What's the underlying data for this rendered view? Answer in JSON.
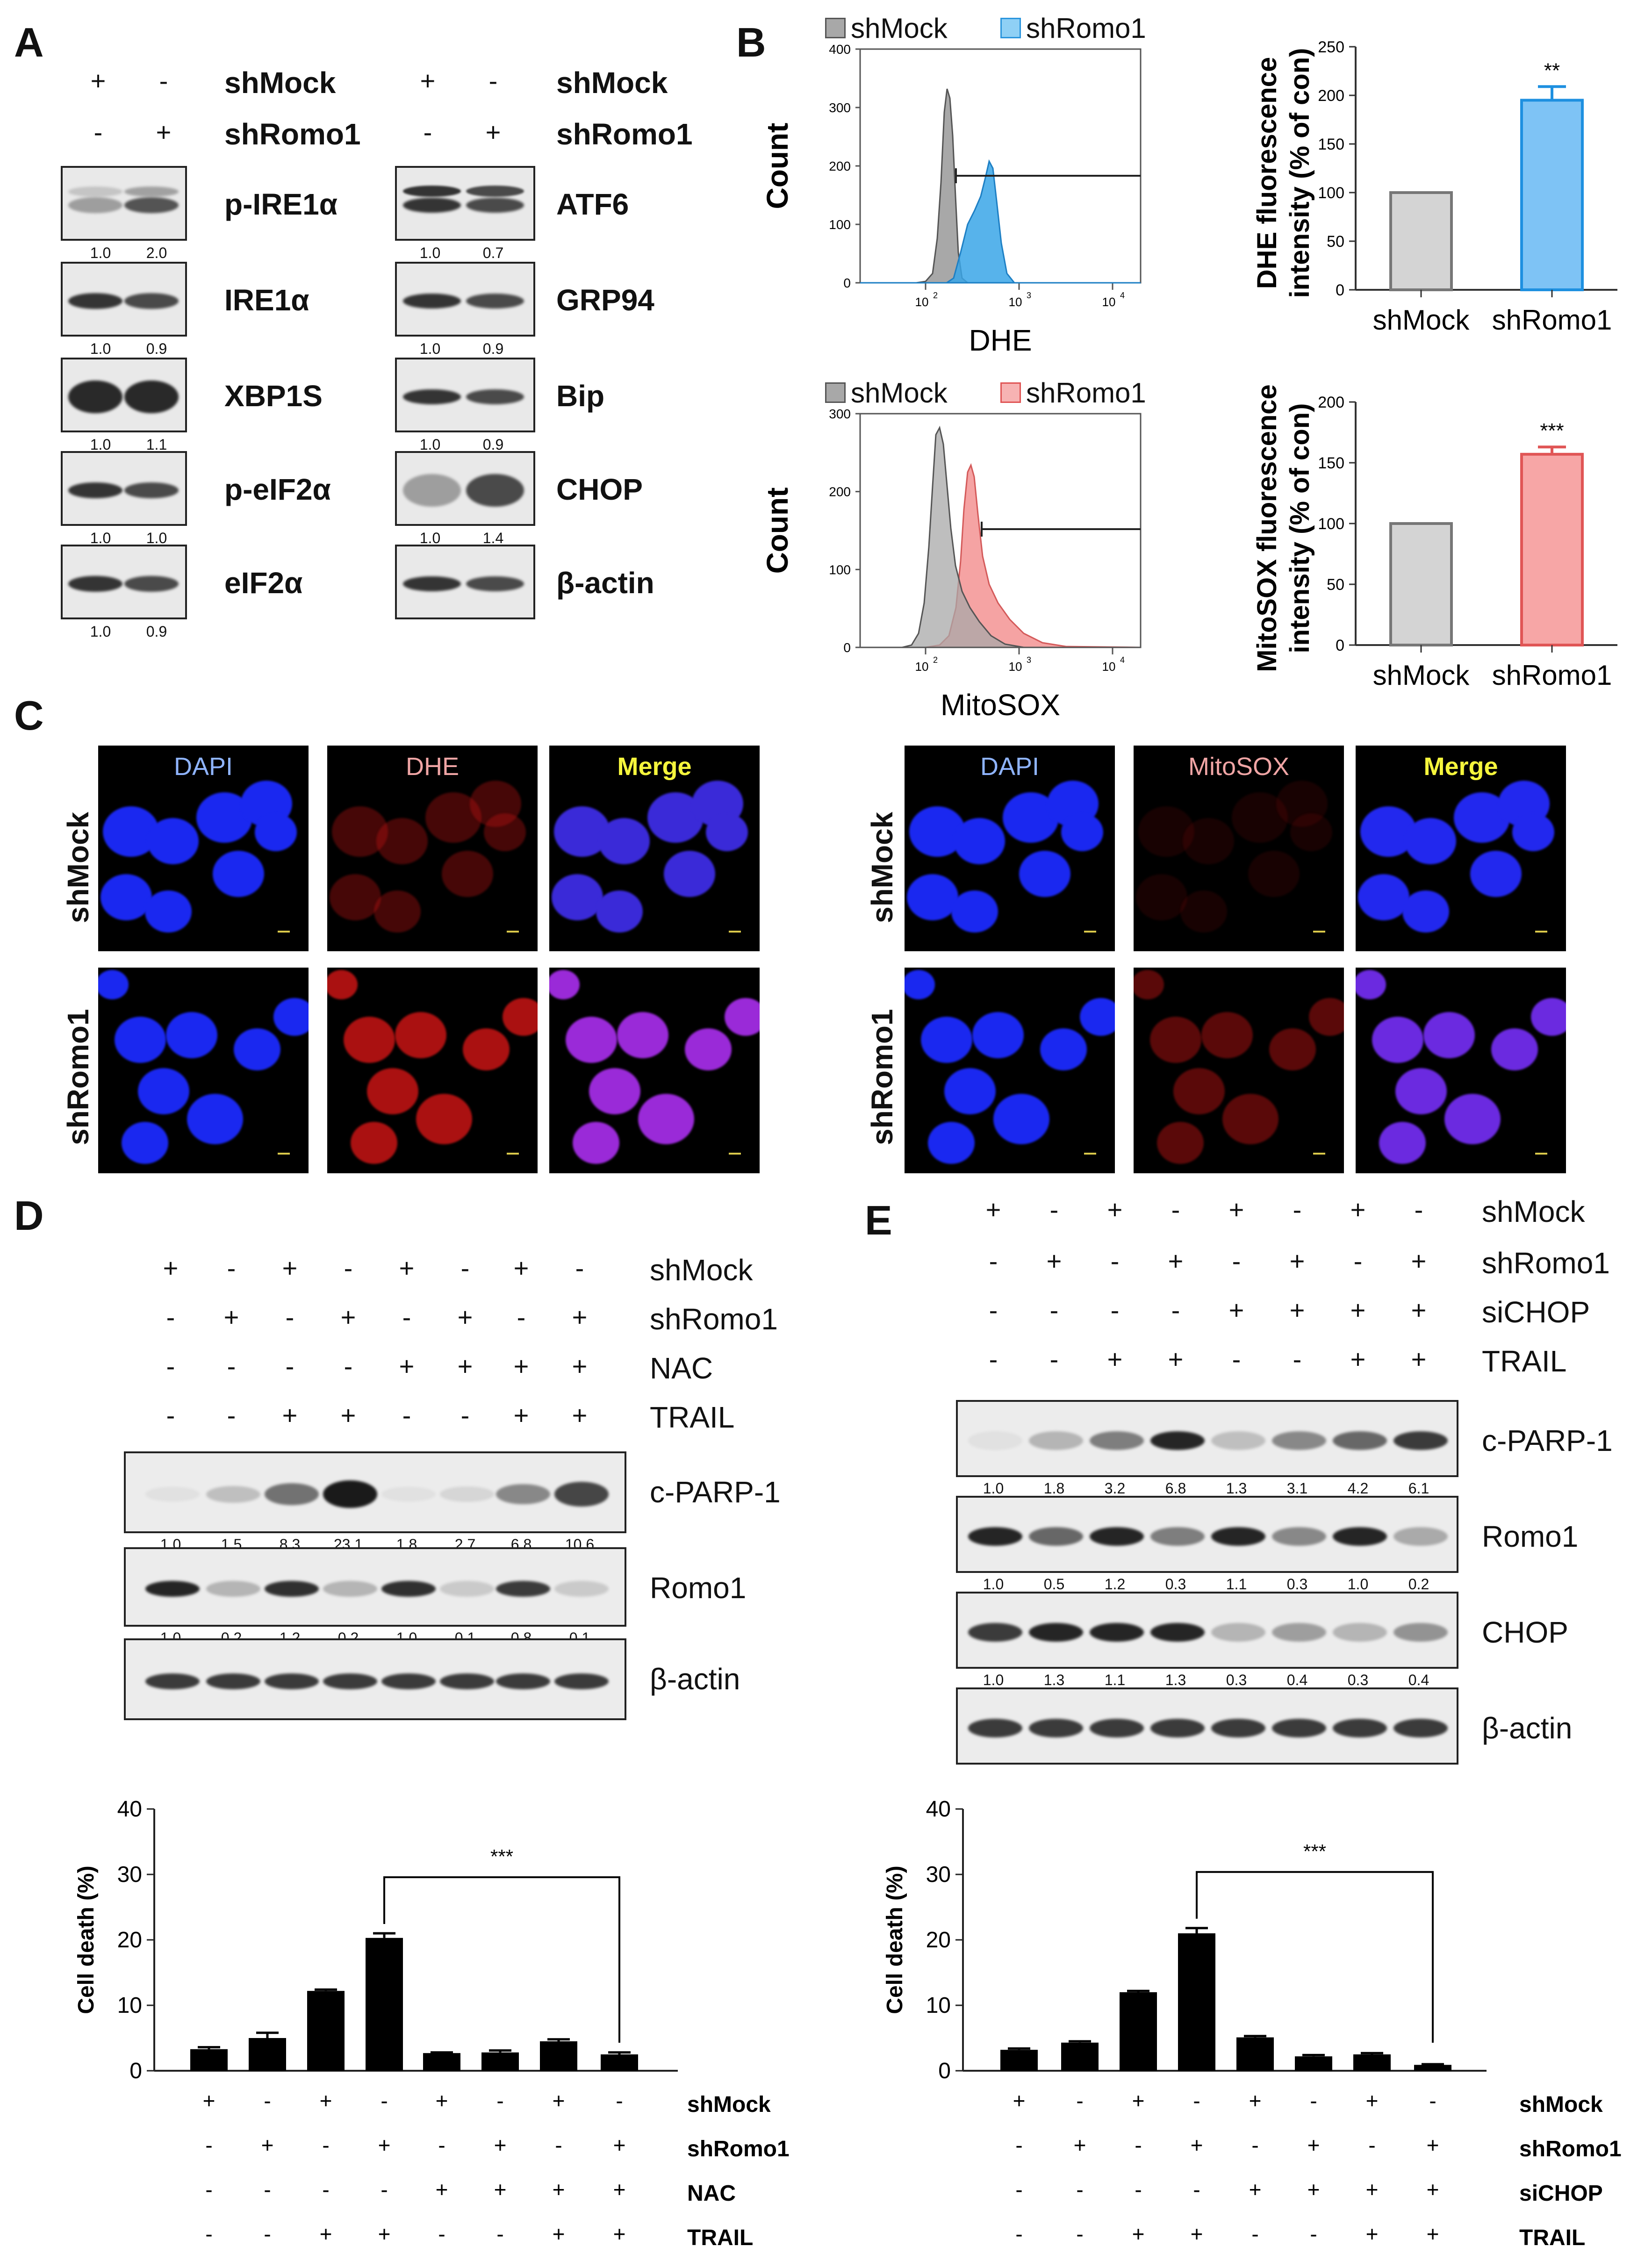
{
  "panels": {
    "A": "A",
    "B": "B",
    "C": "C",
    "D": "D",
    "E": "E"
  },
  "conditions": {
    "mock": "shMock",
    "romo": "shRomo1",
    "nac": "NAC",
    "trail": "TRAIL",
    "sichop": "siCHOP"
  },
  "sign": {
    "plus": "+",
    "minus": "-"
  },
  "panelA": {
    "left": [
      {
        "label": "p-IRE1α",
        "q": [
          "1.0",
          "2.0"
        ]
      },
      {
        "label": "IRE1α",
        "q": [
          "1.0",
          "0.9"
        ]
      },
      {
        "label": "XBP1S",
        "q": [
          "1.0",
          "1.1"
        ]
      },
      {
        "label": "p-eIF2α",
        "q": [
          "1.0",
          "1.0"
        ]
      },
      {
        "label": "eIF2α",
        "q": [
          "1.0",
          "0.9"
        ]
      }
    ],
    "right": [
      {
        "label": "ATF6",
        "q": [
          "1.0",
          "0.7"
        ]
      },
      {
        "label": "GRP94",
        "q": [
          "1.0",
          "0.9"
        ]
      },
      {
        "label": "Bip",
        "q": [
          "1.0",
          "0.9"
        ]
      },
      {
        "label": "CHOP",
        "q": [
          "1.0",
          "1.4"
        ]
      },
      {
        "label": "β-actin",
        "q": []
      }
    ]
  },
  "panelB": {
    "histo_ylabel": "Count",
    "dhe_xlabel": "DHE",
    "mito_xlabel": "MitoSOX",
    "histo_dhe_yticks": [
      "0",
      "100",
      "200",
      "300",
      "400"
    ],
    "histo_mito_yticks": [
      "0",
      "100",
      "200",
      "300"
    ],
    "histo_xticks": [
      "10",
      "10",
      "10"
    ],
    "histo_xexp": [
      "2",
      "3",
      "4"
    ],
    "colors": {
      "mock": "#a8a8a8",
      "romo_dhe": "#3aa6e8",
      "romo_mito": "#f28c8c"
    }
  },
  "chart_data": [
    {
      "type": "bar",
      "categories": [
        "shMock",
        "shRomo1"
      ],
      "values": [
        100,
        195
      ],
      "errors": [
        0,
        14
      ],
      "ylabel_line1": "DHE fluorescence",
      "ylabel_line2": "intensity (% of con)",
      "ylim": [
        0,
        250
      ],
      "yticks": [
        "0",
        "50",
        "100",
        "150",
        "200",
        "250"
      ],
      "significance": "**",
      "colors": [
        "#d4d4d4",
        "#7ec3f5"
      ],
      "edges": [
        "#777777",
        "#1e90e0"
      ]
    },
    {
      "type": "bar",
      "categories": [
        "shMock",
        "shRomo1"
      ],
      "values": [
        100,
        157
      ],
      "errors": [
        0,
        6
      ],
      "ylabel_line1": "MitoSOX fluorescence",
      "ylabel_line2": "intensity (% of con)",
      "ylim": [
        0,
        200
      ],
      "yticks": [
        "0",
        "50",
        "100",
        "150",
        "200"
      ],
      "significance": "***",
      "colors": [
        "#d4d4d4",
        "#f7a6a6"
      ],
      "edges": [
        "#777777",
        "#e05555"
      ]
    },
    {
      "type": "bar",
      "categories": [
        "1",
        "2",
        "3",
        "4",
        "5",
        "6",
        "7",
        "8"
      ],
      "values": [
        3.3,
        5.0,
        12.2,
        20.3,
        2.7,
        2.8,
        4.5,
        2.5
      ],
      "errors": [
        0.3,
        0.8,
        0.2,
        0.7,
        0.1,
        0.3,
        0.3,
        0.3
      ],
      "ylabel": "Cell death (%)",
      "ylim": [
        0,
        40
      ],
      "yticks": [
        "0",
        "10",
        "20",
        "30",
        "40"
      ],
      "significance": "***",
      "bracket": [
        3,
        7
      ],
      "condition_rows": [
        {
          "name": "shMock",
          "signs": [
            "+",
            "-",
            "+",
            "-",
            "+",
            "-",
            "+",
            "-"
          ]
        },
        {
          "name": "shRomo1",
          "signs": [
            "-",
            "+",
            "-",
            "+",
            "-",
            "+",
            "-",
            "+"
          ]
        },
        {
          "name": "NAC",
          "signs": [
            "-",
            "-",
            "-",
            "-",
            "+",
            "+",
            "+",
            "+"
          ]
        },
        {
          "name": "TRAIL",
          "signs": [
            "-",
            "-",
            "+",
            "+",
            "-",
            "-",
            "+",
            "+"
          ]
        }
      ]
    },
    {
      "type": "bar",
      "categories": [
        "1",
        "2",
        "3",
        "4",
        "5",
        "6",
        "7",
        "8"
      ],
      "values": [
        3.2,
        4.3,
        12.0,
        21.0,
        5.1,
        2.2,
        2.5,
        0.9
      ],
      "errors": [
        0.2,
        0.2,
        0.2,
        0.8,
        0.2,
        0.2,
        0.2,
        0.1
      ],
      "ylabel": "Cell death (%)",
      "ylim": [
        0,
        40
      ],
      "yticks": [
        "0",
        "10",
        "20",
        "30",
        "40"
      ],
      "significance": "***",
      "bracket": [
        3,
        7
      ],
      "condition_rows": [
        {
          "name": "shMock",
          "signs": [
            "+",
            "-",
            "+",
            "-",
            "+",
            "-",
            "+",
            "-"
          ]
        },
        {
          "name": "shRomo1",
          "signs": [
            "-",
            "+",
            "-",
            "+",
            "-",
            "+",
            "-",
            "+"
          ]
        },
        {
          "name": "siCHOP",
          "signs": [
            "-",
            "-",
            "-",
            "-",
            "+",
            "+",
            "+",
            "+"
          ]
        },
        {
          "name": "TRAIL",
          "signs": [
            "-",
            "-",
            "+",
            "+",
            "-",
            "-",
            "+",
            "+"
          ]
        }
      ]
    }
  ],
  "panelC": {
    "left_titles": [
      "DAPI",
      "DHE",
      "Merge"
    ],
    "right_titles": [
      "DAPI",
      "MitoSOX",
      "Merge"
    ],
    "rows": [
      "shMock",
      "shRomo1"
    ],
    "title_colors": [
      "#8fb4ff",
      "#f0a5a5",
      "#f5f53c"
    ]
  },
  "panelD": {
    "blots": [
      {
        "label": "c-PARP-1",
        "q": [
          "1.0",
          "1.5",
          "8.3",
          "23.1",
          "1.8",
          "2.7",
          "6.8",
          "10.6"
        ]
      },
      {
        "label": "Romo1",
        "q": [
          "1.0",
          "0.2",
          "1.2",
          "0.2",
          "1.0",
          "0.1",
          "0.8",
          "0.1"
        ]
      },
      {
        "label": "β-actin",
        "q": []
      }
    ]
  },
  "panelE": {
    "blots": [
      {
        "label": "c-PARP-1",
        "q": [
          "1.0",
          "1.8",
          "3.2",
          "6.8",
          "1.3",
          "3.1",
          "4.2",
          "6.1"
        ]
      },
      {
        "label": "Romo1",
        "q": [
          "1.0",
          "0.5",
          "1.2",
          "0.3",
          "1.1",
          "0.3",
          "1.0",
          "0.2"
        ]
      },
      {
        "label": "CHOP",
        "q": [
          "1.0",
          "1.3",
          "1.1",
          "1.3",
          "0.3",
          "0.4",
          "0.3",
          "0.4"
        ]
      },
      {
        "label": "β-actin",
        "q": []
      }
    ]
  }
}
